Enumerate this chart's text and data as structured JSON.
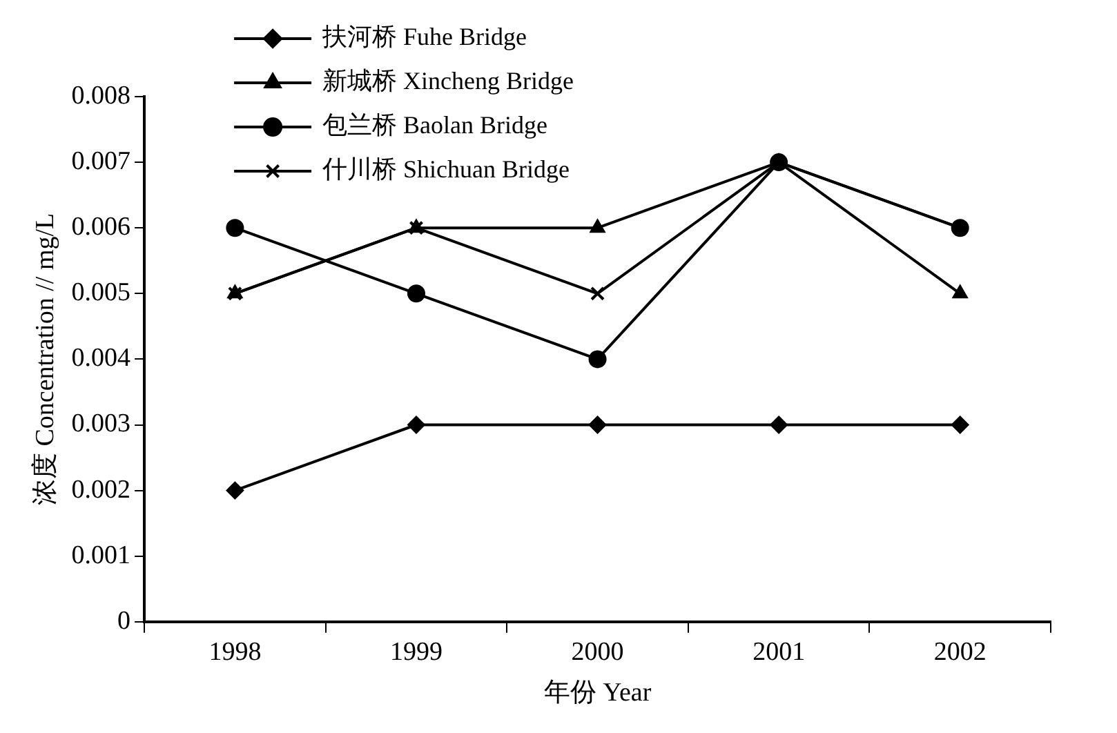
{
  "chart_data": {
    "type": "line",
    "xlabel": "年份 Year",
    "ylabel": "浓度 Concentration // mg/L",
    "categories": [
      "1998",
      "1999",
      "2000",
      "2001",
      "2002"
    ],
    "series": [
      {
        "name": "扶河桥 Fuhe Bridge",
        "color": "#000000",
        "marker": "diamond",
        "values": [
          0.002,
          0.003,
          0.003,
          0.003,
          0.003
        ]
      },
      {
        "name": "新城桥 Xincheng Bridge",
        "color": "#000000",
        "marker": "triangle",
        "values": [
          0.005,
          0.006,
          0.006,
          0.007,
          0.005
        ]
      },
      {
        "name": "包兰桥 Baolan Bridge",
        "color": "#000000",
        "marker": "circle",
        "values": [
          0.006,
          0.005,
          0.004,
          0.007,
          0.006
        ]
      },
      {
        "name": "什川桥 Shichuan Bridge",
        "color": "#000000",
        "marker": "cross",
        "values": [
          0.005,
          0.006,
          0.005,
          0.007,
          0.006
        ]
      }
    ],
    "ylim": [
      0,
      0.008
    ],
    "yticks": [
      0,
      0.001,
      0.002,
      0.003,
      0.004,
      0.005,
      0.006,
      0.007,
      0.008
    ],
    "grid": false,
    "legend": "top left",
    "line_style": "solid"
  }
}
